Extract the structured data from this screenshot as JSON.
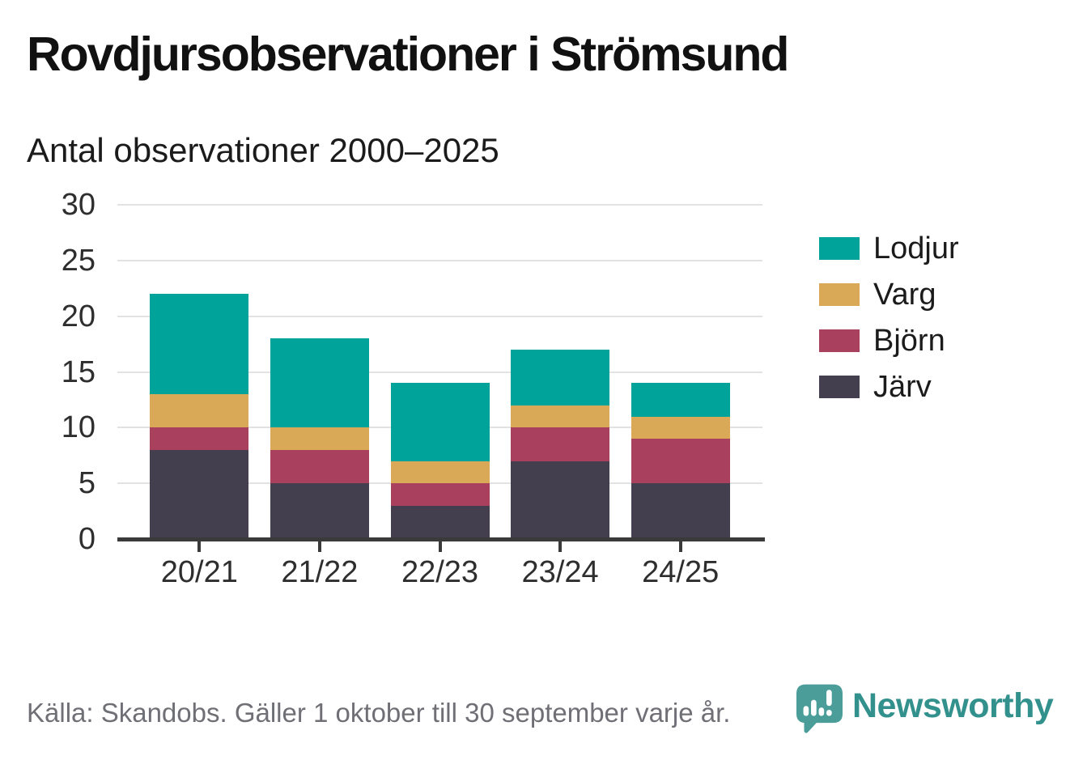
{
  "title": "Rovdjursobservationer i Strömsund",
  "subtitle": "Antal observationer 2000–2025",
  "footer": {
    "source": "Källa: Skandobs. Gäller 1 oktober till 30 september varje år.",
    "brand": "Newsworthy"
  },
  "colors": {
    "lodjur_teal": "#00A399",
    "varg_gold": "#D9A958",
    "bjorn_maroon": "#A8405E",
    "jarv_dark": "#433F4E",
    "gridline": "#e2e2e2",
    "axis": "#3a3a3a",
    "brand_teal": "#33918d",
    "brand_icon_teal": "#4A9D99",
    "footer_gray": "#6f6f76"
  },
  "chart_data": {
    "type": "bar",
    "stacked": true,
    "title": "Rovdjursobservationer i Strömsund",
    "subtitle": "Antal observationer 2000–2025",
    "categories": [
      "20/21",
      "21/22",
      "22/23",
      "23/24",
      "24/25"
    ],
    "series": [
      {
        "name": "Järv",
        "color": "#433F4E",
        "values": [
          8,
          5,
          3,
          7,
          5
        ]
      },
      {
        "name": "Björn",
        "color": "#A8405E",
        "values": [
          2,
          3,
          2,
          3,
          4
        ]
      },
      {
        "name": "Varg",
        "color": "#D9A958",
        "values": [
          3,
          2,
          2,
          2,
          2
        ]
      },
      {
        "name": "Lodjur",
        "color": "#00A399",
        "values": [
          9,
          8,
          7,
          5,
          3
        ]
      }
    ],
    "totals": [
      22,
      18,
      14,
      17,
      14
    ],
    "legend_order": [
      "Lodjur",
      "Varg",
      "Björn",
      "Järv"
    ],
    "legend_position": "right",
    "yticks": [
      0,
      5,
      10,
      15,
      20,
      25,
      30
    ],
    "ylim": [
      0,
      30
    ],
    "grid": true,
    "xlabel": "",
    "ylabel": ""
  }
}
